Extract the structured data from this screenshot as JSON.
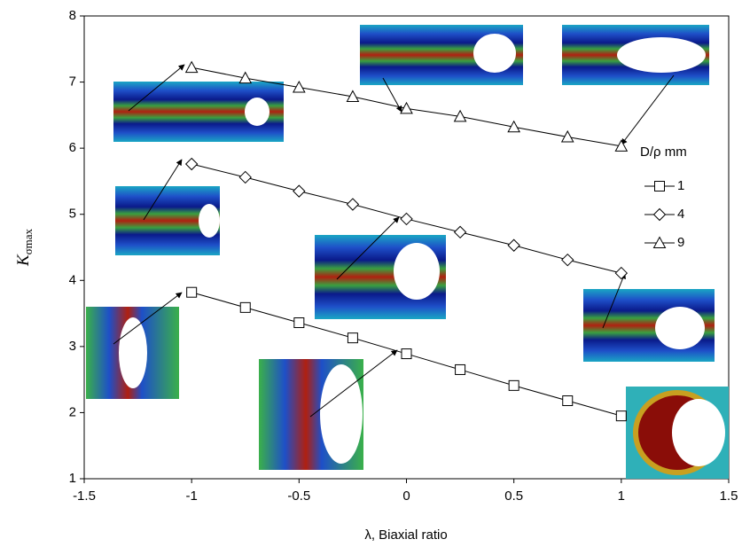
{
  "chart_data": {
    "type": "line",
    "x_label": "λ, Biaxial ratio",
    "y_label": "K",
    "y_label_subscript": "σmax",
    "x": [
      -1,
      -0.75,
      -0.5,
      -0.25,
      0,
      0.25,
      0.5,
      0.75,
      1
    ],
    "series": [
      {
        "name": "1",
        "marker": "square",
        "color": "#000000",
        "values": [
          3.82,
          3.59,
          3.36,
          3.13,
          2.89,
          2.65,
          2.41,
          2.18,
          1.95
        ]
      },
      {
        "name": "4",
        "marker": "diamond",
        "color": "#000000",
        "values": [
          5.76,
          5.56,
          5.35,
          5.15,
          4.93,
          4.73,
          4.53,
          4.31,
          4.11
        ]
      },
      {
        "name": "9",
        "marker": "triangle",
        "color": "#000000",
        "values": [
          7.22,
          7.06,
          6.92,
          6.78,
          6.6,
          6.48,
          6.32,
          6.17,
          6.03
        ]
      }
    ],
    "legend_title": "D/ρ mm",
    "xlim": [
      -1.5,
      1.5
    ],
    "xticks": [
      -1.5,
      -1,
      -0.5,
      0,
      0.5,
      1,
      1.5
    ],
    "ylim": [
      1,
      8
    ],
    "yticks": [
      1,
      2,
      3,
      4,
      5,
      6,
      7,
      8
    ]
  }
}
